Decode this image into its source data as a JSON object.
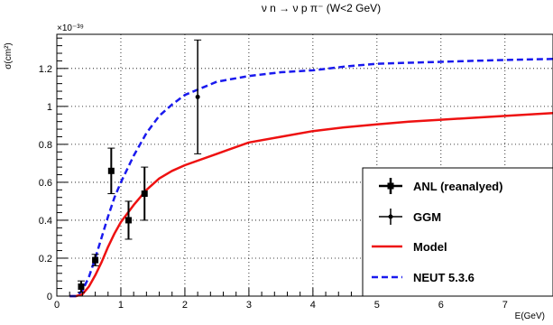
{
  "chart_data": {
    "type": "line",
    "title": "ν n → ν p  π⁻ (W<2 GeV)",
    "xlabel": "E(GeV)",
    "ylabel": "σ(cm²)",
    "y_exponent_label": "×10⁻³⁹",
    "xlim": [
      0,
      7.75
    ],
    "ylim": [
      0,
      1.38
    ],
    "x_ticks": [
      0,
      1,
      2,
      3,
      4,
      5,
      6,
      7
    ],
    "y_ticks": [
      0,
      0.2,
      0.4,
      0.6,
      0.8,
      1,
      1.2
    ],
    "x_tick_labels": [
      "0",
      "1",
      "2",
      "3",
      "4",
      "5",
      "6",
      "7"
    ],
    "y_tick_labels": [
      "0",
      "0.2",
      "0.4",
      "0.6",
      "0.8",
      "1",
      "1.2"
    ],
    "grid": true,
    "legend_position": "bottom-right",
    "series": [
      {
        "name": "ANL (reanalyed)",
        "kind": "points-errorbars",
        "marker": "square",
        "color": "#000000",
        "points": [
          {
            "x": 0.38,
            "y": 0.05,
            "yerr": 0.03
          },
          {
            "x": 0.6,
            "y": 0.19,
            "yerr": 0.03
          },
          {
            "x": 0.85,
            "y": 0.66,
            "yerr": 0.12
          },
          {
            "x": 1.12,
            "y": 0.4,
            "yerr": 0.1
          },
          {
            "x": 1.37,
            "y": 0.54,
            "yerr": 0.14
          }
        ]
      },
      {
        "name": "GGM",
        "kind": "points-errorbars",
        "marker": "dot",
        "color": "#000000",
        "points": [
          {
            "x": 2.2,
            "y": 1.05,
            "yerr": 0.3
          }
        ]
      },
      {
        "name": "Model",
        "kind": "line",
        "style": "solid",
        "color": "#ee1111",
        "points": [
          [
            0.2,
            0.0
          ],
          [
            0.3,
            0.0
          ],
          [
            0.4,
            0.01
          ],
          [
            0.5,
            0.05
          ],
          [
            0.6,
            0.11
          ],
          [
            0.7,
            0.18
          ],
          [
            0.8,
            0.26
          ],
          [
            0.9,
            0.33
          ],
          [
            1.0,
            0.39
          ],
          [
            1.2,
            0.48
          ],
          [
            1.4,
            0.56
          ],
          [
            1.6,
            0.62
          ],
          [
            1.8,
            0.66
          ],
          [
            2.0,
            0.69
          ],
          [
            2.5,
            0.75
          ],
          [
            3.0,
            0.81
          ],
          [
            3.5,
            0.84
          ],
          [
            4.0,
            0.87
          ],
          [
            4.5,
            0.89
          ],
          [
            5.0,
            0.905
          ],
          [
            5.5,
            0.92
          ],
          [
            6.0,
            0.93
          ],
          [
            6.5,
            0.94
          ],
          [
            7.0,
            0.95
          ],
          [
            7.75,
            0.965
          ]
        ]
      },
      {
        "name": "NEUT 5.3.6",
        "kind": "line",
        "style": "dashed",
        "color": "#1a1aee",
        "points": [
          [
            0.2,
            0.0
          ],
          [
            0.3,
            0.0
          ],
          [
            0.4,
            0.03
          ],
          [
            0.5,
            0.1
          ],
          [
            0.6,
            0.2
          ],
          [
            0.7,
            0.31
          ],
          [
            0.8,
            0.42
          ],
          [
            0.9,
            0.52
          ],
          [
            1.0,
            0.6
          ],
          [
            1.2,
            0.74
          ],
          [
            1.4,
            0.86
          ],
          [
            1.6,
            0.95
          ],
          [
            1.8,
            1.01
          ],
          [
            2.0,
            1.06
          ],
          [
            2.5,
            1.13
          ],
          [
            3.0,
            1.16
          ],
          [
            3.5,
            1.18
          ],
          [
            4.0,
            1.19
          ],
          [
            4.5,
            1.21
          ],
          [
            5.0,
            1.225
          ],
          [
            5.5,
            1.23
          ],
          [
            6.0,
            1.235
          ],
          [
            6.5,
            1.24
          ],
          [
            7.0,
            1.245
          ],
          [
            7.75,
            1.25
          ]
        ]
      }
    ]
  }
}
